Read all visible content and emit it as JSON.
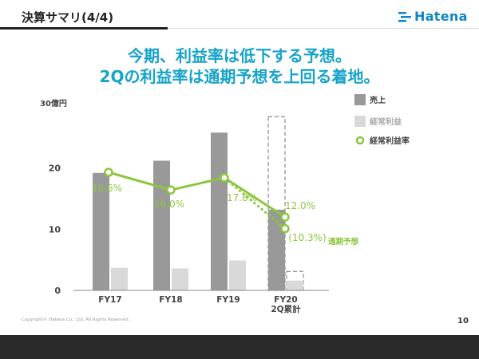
{
  "header": {
    "title": "決算サマリ(4/4)",
    "logo_text": "Hatena"
  },
  "headline": {
    "line1": "今期、利益率は低下する予想。",
    "line2": "2Qの利益率は通期予想を上回る着地。"
  },
  "footer": {
    "copyright": "Copyright© Hatena Co., Ltd. All Rights Reserved.",
    "page_number": "10"
  },
  "colors": {
    "sales": "#999999",
    "profit": "#d9d9d9",
    "margin": "#8cc63f",
    "headline": "#17a3c8"
  },
  "chart_data": {
    "type": "bar",
    "categories": [
      "FY17",
      "FY18",
      "FY19",
      "FY20\n2Q累計"
    ],
    "category_labels": [
      [
        "FY17"
      ],
      [
        "FY18"
      ],
      [
        "FY19"
      ],
      [
        "FY20",
        "2Q累計"
      ]
    ],
    "ylabel": "30億円",
    "ylim": [
      0,
      30
    ],
    "yticks": [
      0,
      10,
      20
    ],
    "series": [
      {
        "name": "売上",
        "type": "bar",
        "values": [
          19.2,
          21.2,
          25.8,
          13.2
        ]
      },
      {
        "name": "経常利益",
        "type": "bar",
        "values": [
          3.7,
          3.6,
          4.9,
          1.6
        ]
      },
      {
        "name": "経常利益率",
        "type": "line",
        "values": [
          18.6,
          16.0,
          17.8,
          12.0
        ],
        "labels": [
          "18.6%",
          "16.0%",
          "17.8%",
          "12.0%"
        ]
      }
    ],
    "forecast": {
      "sales": 28.4,
      "profit": 3.1,
      "margin": 10.3,
      "margin_label": "(10.3%)",
      "label": "通期予想"
    },
    "legend": {
      "position": "top-right"
    }
  }
}
